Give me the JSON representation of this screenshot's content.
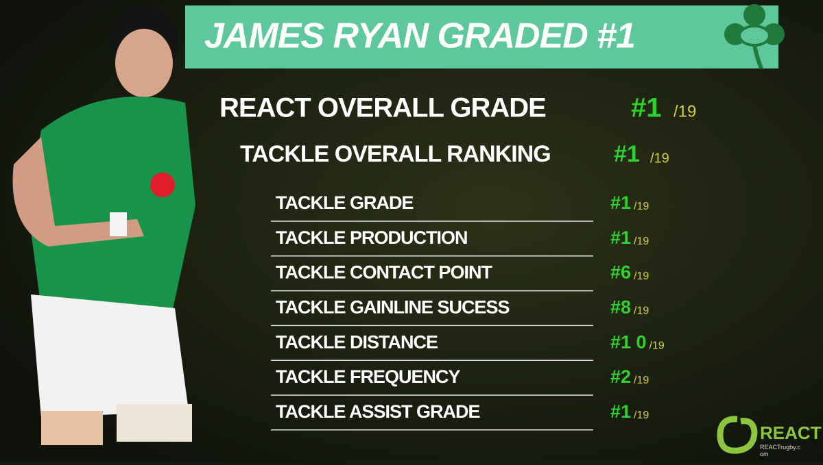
{
  "title": "JAMES RYAN GRADED #1",
  "overall": {
    "label": "REACT OVERALL GRADE",
    "rank": "#1",
    "out_of": "/19"
  },
  "tackle_overall": {
    "label": "TACKLE OVERALL RANKING",
    "rank": "#1",
    "out_of": "/19"
  },
  "rows": [
    {
      "label": "TACKLE GRADE",
      "rank": "#1",
      "out_of": "/19"
    },
    {
      "label": "TACKLE PRODUCTION",
      "rank": "#1",
      "out_of": "/19"
    },
    {
      "label": "TACKLE CONTACT POINT",
      "rank": "#6",
      "out_of": "/19"
    },
    {
      "label": "TACKLE GAINLINE SUCESS",
      "rank": "#8",
      "out_of": "/19"
    },
    {
      "label": "TACKLE DISTANCE",
      "rank": "#1 0",
      "out_of": "/19"
    },
    {
      "label": "TACKLE FREQUENCY",
      "rank": "#2",
      "out_of": "/19"
    },
    {
      "label": "TACKLE ASSIST GRADE",
      "rank": "#1",
      "out_of": "/19"
    }
  ],
  "logo": {
    "name": "REACT",
    "url": "REACTrugby.com"
  }
}
